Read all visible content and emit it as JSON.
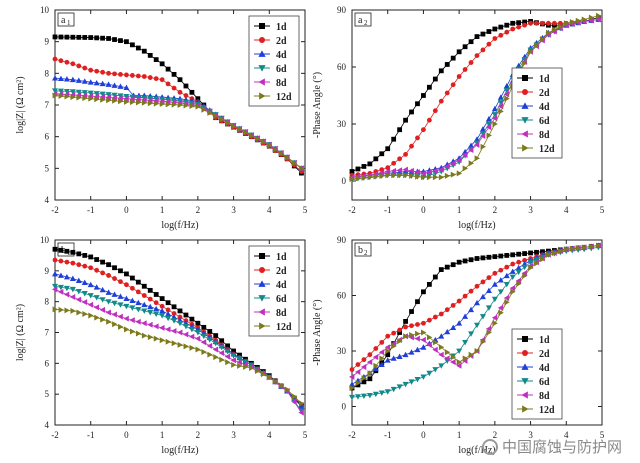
{
  "figure": {
    "watermark": "中国腐蚀与防护网"
  },
  "chart_data": [
    {
      "id": "a1",
      "type": "scatter",
      "panel_label": "a",
      "panel_label_sub": "1",
      "xlabel": "log(f/Hz)",
      "ylabel": "log|Z| (Ω cm²)",
      "xlim": [
        -2,
        5
      ],
      "ylim": [
        4,
        10
      ],
      "xticks": [
        -2,
        -1,
        0,
        1,
        2,
        3,
        4,
        5
      ],
      "yticks": [
        4,
        5,
        6,
        7,
        8,
        9,
        10
      ],
      "series": [
        {
          "name": "1d",
          "marker": "square",
          "color": "#000000",
          "x": [
            -2,
            -1,
            -0.5,
            0,
            0.5,
            1,
            1.5,
            2,
            2.5,
            3,
            3.5,
            4,
            4.5,
            4.9
          ],
          "y": [
            9.15,
            9.13,
            9.1,
            9.0,
            8.7,
            8.3,
            7.8,
            7.2,
            6.6,
            6.3,
            6.0,
            5.7,
            5.3,
            4.85
          ]
        },
        {
          "name": "2d",
          "marker": "circle",
          "color": "#e02020",
          "x": [
            -2,
            -1.5,
            -1,
            -0.5,
            0,
            0.5,
            1,
            1.5,
            2,
            2.5,
            3,
            3.5,
            4,
            4.5,
            4.9
          ],
          "y": [
            8.45,
            8.3,
            8.1,
            8.0,
            7.95,
            7.9,
            7.8,
            7.4,
            7.1,
            6.6,
            6.3,
            6.0,
            5.7,
            5.3,
            4.9
          ]
        },
        {
          "name": "4d",
          "marker": "triangle-up",
          "color": "#1f3fd8",
          "x": [
            -2,
            -1.5,
            -1,
            -0.5,
            0,
            0.2,
            0.5,
            1,
            1.5,
            2,
            2.5,
            3,
            3.5,
            4,
            4.5,
            4.9
          ],
          "y": [
            7.85,
            7.8,
            7.72,
            7.65,
            7.55,
            7.3,
            7.3,
            7.25,
            7.2,
            7.1,
            6.7,
            6.35,
            6.05,
            5.75,
            5.35,
            5.0
          ]
        },
        {
          "name": "6d",
          "marker": "triangle-down",
          "color": "#128a8a",
          "x": [
            -2,
            -1.5,
            -1,
            -0.5,
            0,
            0.5,
            1,
            1.5,
            2,
            2.5,
            3,
            3.5,
            4,
            4.5,
            4.9
          ],
          "y": [
            7.45,
            7.42,
            7.38,
            7.33,
            7.27,
            7.22,
            7.18,
            7.12,
            7.02,
            6.7,
            6.35,
            6.05,
            5.75,
            5.35,
            5.0
          ]
        },
        {
          "name": "8d",
          "marker": "triangle-left",
          "color": "#c030c0",
          "x": [
            -2,
            -1.5,
            -1,
            -0.5,
            0,
            0.5,
            1,
            1.5,
            2,
            2.5,
            3,
            3.5,
            4,
            4.5,
            4.9
          ],
          "y": [
            7.35,
            7.32,
            7.28,
            7.24,
            7.2,
            7.16,
            7.12,
            7.07,
            6.98,
            6.68,
            6.35,
            6.05,
            5.75,
            5.35,
            5.0
          ]
        },
        {
          "name": "12d",
          "marker": "triangle-right",
          "color": "#7c7a1c",
          "x": [
            -2,
            -1.5,
            -1,
            -0.5,
            0,
            0.5,
            1,
            1.5,
            2,
            2.5,
            3,
            3.5,
            4,
            4.5,
            4.9
          ],
          "y": [
            7.3,
            7.25,
            7.2,
            7.15,
            7.1,
            7.07,
            7.03,
            7.0,
            6.95,
            6.65,
            6.33,
            6.03,
            5.73,
            5.33,
            5.0
          ]
        }
      ]
    },
    {
      "id": "a2",
      "type": "scatter",
      "panel_label": "a",
      "panel_label_sub": "2",
      "xlabel": "log(f/Hz)",
      "ylabel": "-Phase Angle (°)",
      "xlim": [
        -2,
        5
      ],
      "ylim": [
        -10,
        90
      ],
      "xticks": [
        -2,
        -1,
        0,
        1,
        2,
        3,
        4,
        5
      ],
      "yticks": [
        0,
        30,
        60,
        90
      ],
      "series": [
        {
          "name": "1d",
          "marker": "square",
          "color": "#000000",
          "x": [
            -2,
            -1.5,
            -1,
            -0.5,
            0,
            0.5,
            1,
            1.5,
            2,
            2.5,
            3,
            3.5,
            4,
            4.5,
            4.9
          ],
          "y": [
            5,
            9,
            17,
            32,
            45,
            58,
            68,
            76,
            80,
            83,
            84,
            82,
            82,
            84,
            86
          ]
        },
        {
          "name": "2d",
          "marker": "circle",
          "color": "#e02020",
          "x": [
            -2,
            -1.5,
            -1,
            -0.5,
            0,
            0.5,
            1,
            1.5,
            2,
            2.5,
            3,
            3.5,
            4,
            4.5,
            4.9
          ],
          "y": [
            3,
            4,
            7,
            14,
            27,
            42,
            55,
            66,
            75,
            80,
            83,
            83,
            83,
            84,
            85
          ]
        },
        {
          "name": "4d",
          "marker": "triangle-up",
          "color": "#1f3fd8",
          "x": [
            -2,
            -1.5,
            -1,
            -0.5,
            0,
            0.5,
            1,
            1.5,
            2,
            2.5,
            3,
            3.5,
            4,
            4.5,
            4.9
          ],
          "y": [
            2,
            3,
            4,
            5,
            5,
            7,
            12,
            22,
            38,
            56,
            70,
            78,
            82,
            84,
            85
          ]
        },
        {
          "name": "6d",
          "marker": "triangle-down",
          "color": "#128a8a",
          "x": [
            -2,
            -1.5,
            -1,
            -0.5,
            0,
            0.5,
            1,
            1.5,
            2,
            2.5,
            3,
            3.5,
            4,
            4.5,
            4.9
          ],
          "y": [
            1,
            2,
            3,
            3,
            2,
            5,
            10,
            20,
            35,
            54,
            69,
            77,
            82,
            84,
            85
          ]
        },
        {
          "name": "8d",
          "marker": "triangle-left",
          "color": "#c030c0",
          "x": [
            -2,
            -1.5,
            -1,
            -0.5,
            0,
            0.5,
            1,
            1.5,
            2,
            2.5,
            3,
            3.5,
            4,
            4.5,
            4.9
          ],
          "y": [
            2,
            3,
            5,
            6,
            4,
            6,
            11,
            19,
            33,
            52,
            68,
            77,
            82,
            84,
            85
          ]
        },
        {
          "name": "12d",
          "marker": "triangle-right",
          "color": "#7c7a1c",
          "x": [
            -2,
            -1.5,
            -1,
            -0.5,
            0,
            0.5,
            1,
            1.5,
            2,
            2.5,
            3,
            3.5,
            4,
            4.5,
            4.9
          ],
          "y": [
            1,
            2,
            3,
            3,
            2,
            2,
            4,
            12,
            30,
            50,
            68,
            78,
            83,
            85,
            87
          ]
        }
      ]
    },
    {
      "id": "b1",
      "type": "scatter",
      "panel_label": "b",
      "panel_label_sub": "1",
      "xlabel": "log(f/Hz)",
      "ylabel": "log|Z| (Ω cm²)",
      "xlim": [
        -2,
        5
      ],
      "ylim": [
        4,
        10
      ],
      "xticks": [
        -2,
        -1,
        0,
        1,
        2,
        3,
        4,
        5
      ],
      "yticks": [
        4,
        5,
        6,
        7,
        8,
        9,
        10
      ],
      "series": [
        {
          "name": "1d",
          "marker": "square",
          "color": "#000000",
          "x": [
            -2,
            -1.5,
            -1,
            -0.5,
            0,
            0.5,
            1,
            1.5,
            2,
            2.5,
            3,
            3.5,
            4,
            4.5,
            4.9
          ],
          "y": [
            9.7,
            9.6,
            9.45,
            9.2,
            8.9,
            8.5,
            8.1,
            7.7,
            7.3,
            6.9,
            6.4,
            6.0,
            5.6,
            5.1,
            4.65
          ]
        },
        {
          "name": "2d",
          "marker": "circle",
          "color": "#e02020",
          "x": [
            -2,
            -1.5,
            -1,
            -0.5,
            0,
            0.5,
            1,
            1.5,
            2,
            2.5,
            3,
            3.5,
            4,
            4.5,
            4.9
          ],
          "y": [
            9.35,
            9.25,
            9.1,
            8.85,
            8.55,
            8.2,
            7.85,
            7.5,
            7.15,
            6.75,
            6.3,
            5.95,
            5.55,
            5.1,
            4.6
          ]
        },
        {
          "name": "4d",
          "marker": "triangle-up",
          "color": "#1f3fd8",
          "x": [
            -2,
            -1.5,
            -1,
            -0.5,
            0,
            0.5,
            1,
            1.5,
            2,
            2.5,
            3,
            3.5,
            4,
            4.5,
            4.9
          ],
          "y": [
            8.9,
            8.75,
            8.55,
            8.3,
            8.1,
            7.9,
            7.7,
            7.4,
            7.1,
            6.7,
            6.3,
            5.95,
            5.55,
            5.1,
            4.6
          ]
        },
        {
          "name": "6d",
          "marker": "triangle-down",
          "color": "#128a8a",
          "x": [
            -2,
            -1.5,
            -1,
            -0.5,
            0,
            0.5,
            1,
            1.5,
            2,
            2.5,
            3,
            3.5,
            4,
            4.5,
            4.9
          ],
          "y": [
            8.5,
            8.4,
            8.2,
            8.0,
            7.85,
            7.7,
            7.55,
            7.3,
            7.0,
            6.65,
            6.25,
            5.95,
            5.55,
            5.1,
            4.45
          ]
        },
        {
          "name": "8d",
          "marker": "triangle-left",
          "color": "#c030c0",
          "x": [
            -2,
            -1.5,
            -1,
            -0.5,
            0,
            0.5,
            1,
            1.5,
            2,
            2.5,
            3,
            3.5,
            4,
            4.5,
            4.9
          ],
          "y": [
            8.4,
            8.15,
            7.9,
            7.65,
            7.45,
            7.3,
            7.15,
            7.0,
            6.8,
            6.45,
            6.1,
            5.9,
            5.55,
            5.1,
            4.4
          ]
        },
        {
          "name": "12d",
          "marker": "triangle-right",
          "color": "#7c7a1c",
          "x": [
            -2,
            -1.5,
            -1,
            -0.5,
            0,
            0.5,
            1,
            1.5,
            2,
            2.5,
            3,
            3.5,
            4,
            4.5,
            4.9
          ],
          "y": [
            7.75,
            7.7,
            7.55,
            7.35,
            7.1,
            6.9,
            6.75,
            6.6,
            6.45,
            6.2,
            5.95,
            5.85,
            5.55,
            5.15,
            4.7
          ]
        }
      ]
    },
    {
      "id": "b2",
      "type": "scatter",
      "panel_label": "b",
      "panel_label_sub": "2",
      "xlabel": "log(f/Hz)",
      "ylabel": "-Phase Angle (°)",
      "xlim": [
        -2,
        5
      ],
      "ylim": [
        -10,
        90
      ],
      "xticks": [
        -2,
        -1,
        0,
        1,
        2,
        3,
        4,
        5
      ],
      "yticks": [
        0,
        30,
        60,
        90
      ],
      "series": [
        {
          "name": "1d",
          "marker": "square",
          "color": "#000000",
          "x": [
            -2,
            -1.5,
            -1,
            -0.5,
            0,
            0.5,
            1,
            1.5,
            2,
            2.5,
            3,
            3.5,
            4,
            4.5,
            4.9
          ],
          "y": [
            10,
            15,
            28,
            46,
            62,
            74,
            78,
            80,
            81,
            82,
            83,
            84,
            85,
            86,
            87
          ]
        },
        {
          "name": "2d",
          "marker": "circle",
          "color": "#e02020",
          "x": [
            -2,
            -1.5,
            -1,
            -0.5,
            0,
            0.5,
            1,
            1.5,
            2,
            2.5,
            3,
            3.5,
            4,
            4.5,
            4.9
          ],
          "y": [
            20,
            28,
            38,
            43,
            45,
            50,
            57,
            65,
            72,
            77,
            80,
            83,
            85,
            86,
            87
          ]
        },
        {
          "name": "4d",
          "marker": "triangle-up",
          "color": "#1f3fd8",
          "x": [
            -2,
            -1.5,
            -1,
            -0.5,
            0,
            0.5,
            1,
            1.5,
            2,
            2.5,
            3,
            3.5,
            4,
            4.5,
            4.9
          ],
          "y": [
            12,
            18,
            25,
            28,
            32,
            38,
            45,
            56,
            66,
            73,
            79,
            83,
            85,
            86,
            87
          ]
        },
        {
          "name": "6d",
          "marker": "triangle-down",
          "color": "#128a8a",
          "x": [
            -2,
            -1.5,
            -1,
            -0.5,
            0,
            0.5,
            1,
            1.5,
            2,
            2.5,
            3,
            3.5,
            4,
            4.5,
            4.9
          ],
          "y": [
            5,
            6,
            8,
            12,
            16,
            22,
            30,
            44,
            58,
            70,
            78,
            82,
            84,
            85,
            86
          ]
        },
        {
          "name": "8d",
          "marker": "triangle-left",
          "color": "#c030c0",
          "x": [
            -2,
            -1.5,
            -1,
            -0.5,
            0,
            0.5,
            1,
            1.5,
            2,
            2.5,
            3,
            3.5,
            4,
            4.5,
            4.9
          ],
          "y": [
            16,
            24,
            32,
            38,
            36,
            28,
            22,
            30,
            48,
            64,
            76,
            82,
            85,
            86,
            87
          ]
        },
        {
          "name": "12d",
          "marker": "triangle-right",
          "color": "#7c7a1c",
          "x": [
            -2,
            -1.5,
            -1,
            -0.5,
            0,
            0.5,
            1,
            1.5,
            2,
            2.5,
            3,
            3.5,
            4,
            4.5,
            4.9
          ],
          "y": [
            10,
            18,
            30,
            38,
            40,
            32,
            24,
            30,
            45,
            62,
            75,
            82,
            85,
            86,
            87
          ]
        }
      ]
    }
  ]
}
